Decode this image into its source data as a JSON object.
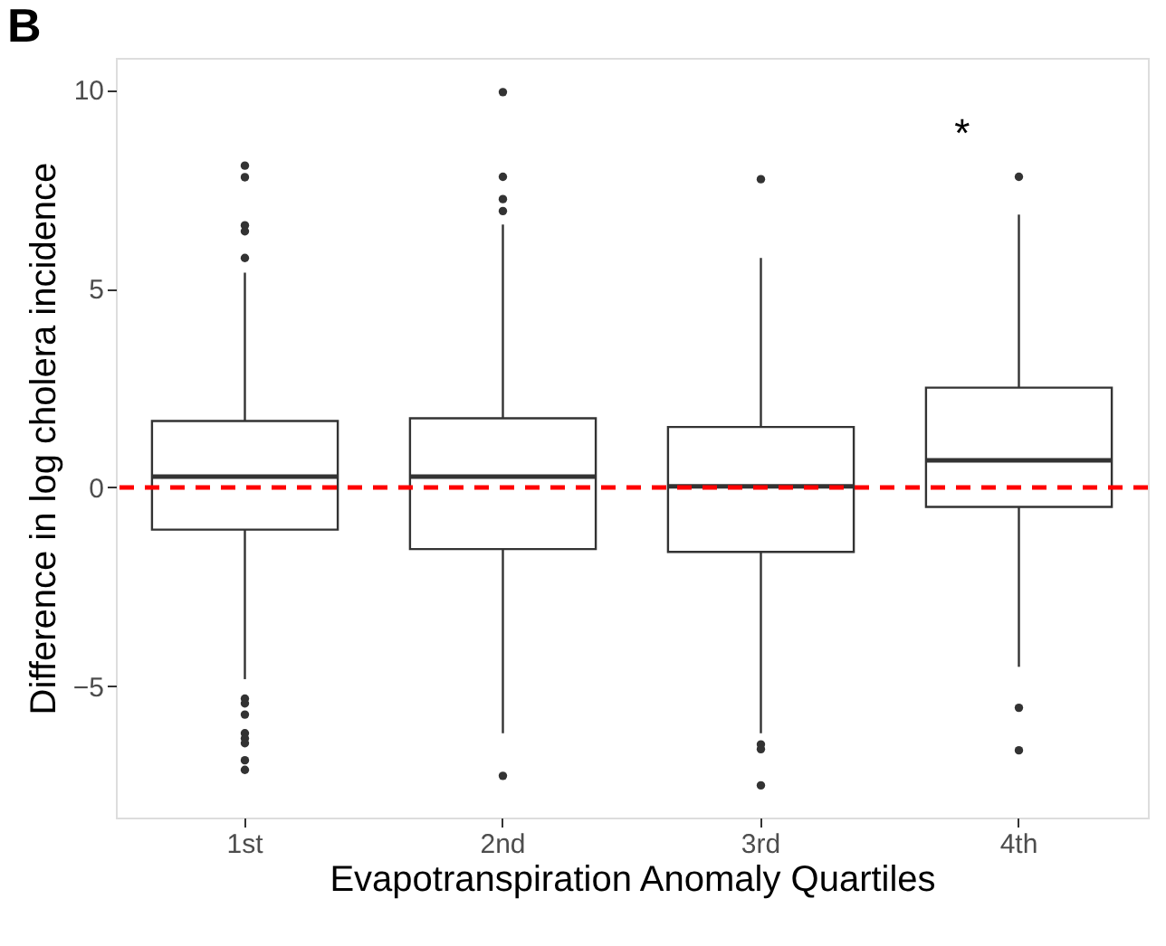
{
  "chart_data": {
    "type": "box",
    "title": "B",
    "xlabel": "Evapotranspiration Anomaly Quartiles",
    "ylabel": "Difference in log cholera incidence",
    "categories": [
      "1st",
      "2nd",
      "3rd",
      "4th"
    ],
    "boxes": [
      {
        "low": -4.82,
        "q1": -1.06,
        "median": 0.27,
        "q3": 1.67,
        "high": 5.4,
        "outliers": [
          8.09,
          7.8,
          6.59,
          6.44,
          5.77,
          -5.31,
          -5.43,
          -5.71,
          -6.18,
          -6.31,
          -6.43,
          -6.86,
          -7.1
        ]
      },
      {
        "low": -6.18,
        "q1": -1.55,
        "median": 0.27,
        "q3": 1.74,
        "high": 6.61,
        "outliers": [
          9.94,
          7.81,
          7.25,
          6.95,
          -7.25
        ]
      },
      {
        "low": -6.18,
        "q1": -1.62,
        "median": 0.03,
        "q3": 1.52,
        "high": 5.77,
        "outliers": [
          7.75,
          -6.46,
          -6.58,
          -7.49
        ]
      },
      {
        "low": -4.51,
        "q1": -0.49,
        "median": 0.68,
        "q3": 2.51,
        "high": 6.86,
        "outliers": [
          7.81,
          -5.54,
          -6.61
        ]
      }
    ],
    "ylim": [
      -8.3,
      10.8
    ],
    "yticks": [
      -5,
      0,
      5,
      10
    ],
    "grid": false,
    "ref_lines": [
      {
        "axis": "y",
        "value": 0,
        "label": null,
        "color": "#ff0000",
        "line_style": "dashed"
      }
    ],
    "annotations": [
      "*"
    ]
  }
}
